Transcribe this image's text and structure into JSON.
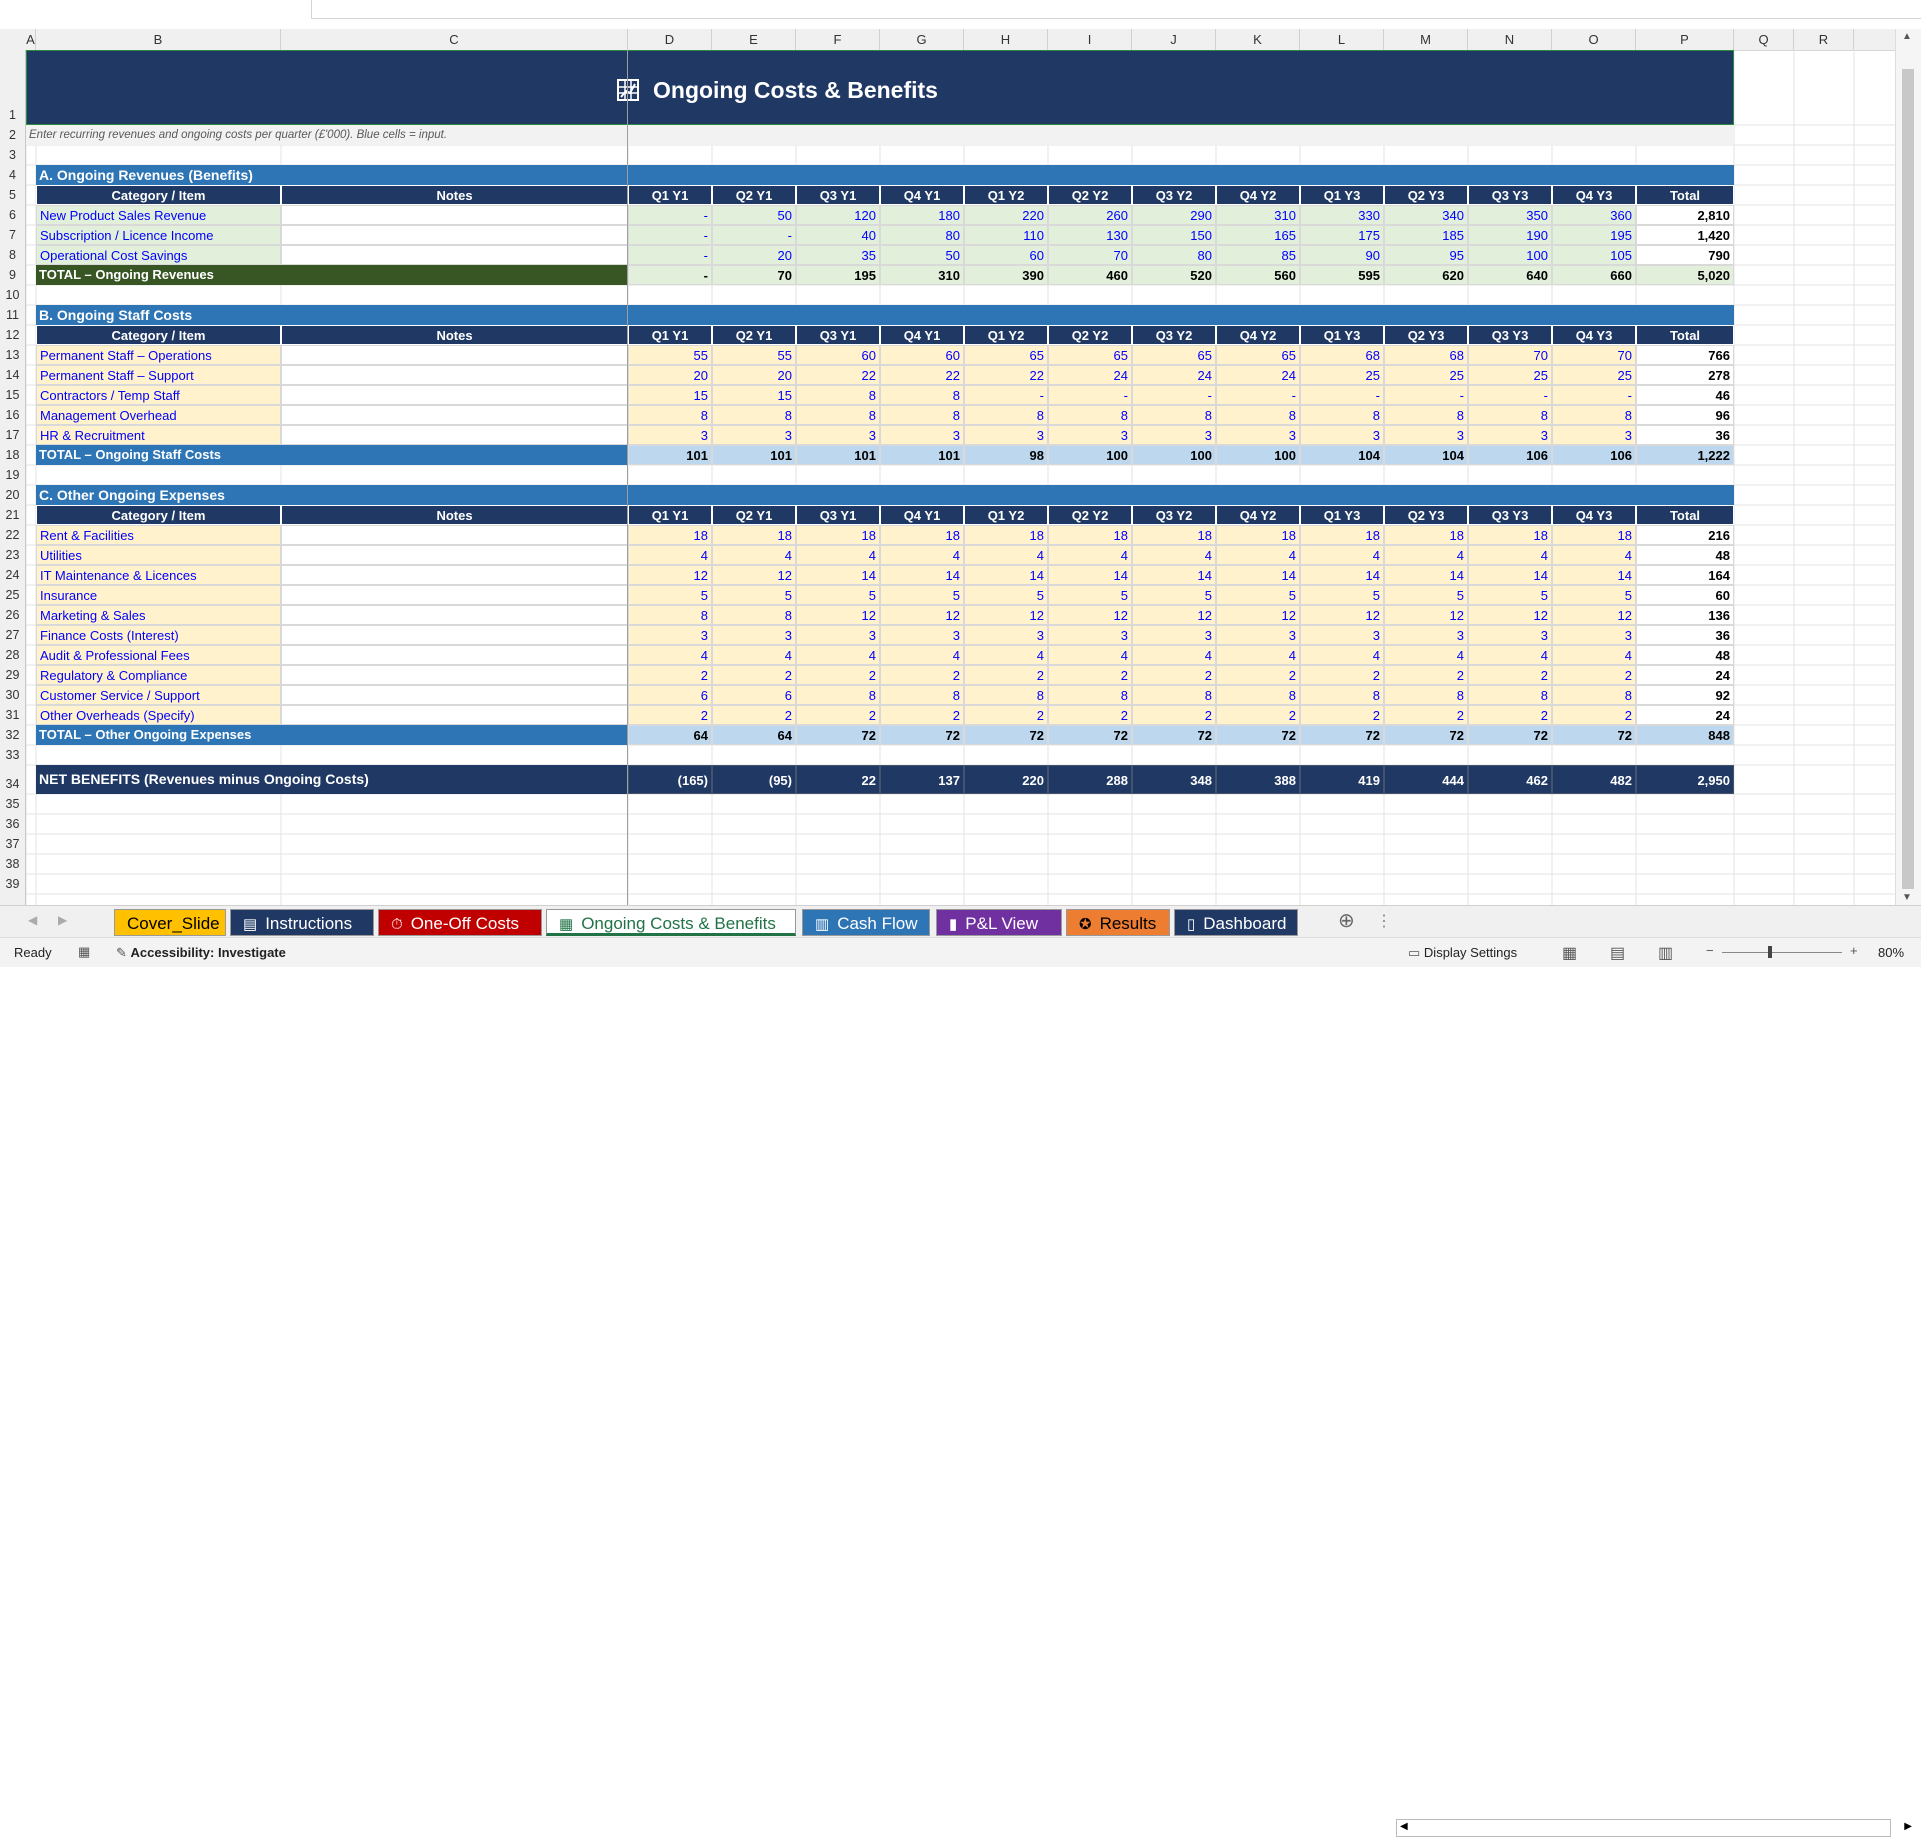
{
  "sheet_title": "Ongoing Costs & Benefits",
  "instruction": "Enter recurring revenues and ongoing costs per quarter (£'000). Blue cells = input.",
  "columns": [
    "A",
    "B",
    "C",
    "D",
    "E",
    "F",
    "G",
    "H",
    "I",
    "J",
    "K",
    "L",
    "M",
    "N",
    "O",
    "P",
    "Q",
    "R"
  ],
  "row_numbers": [
    "1",
    "2",
    "3",
    "4",
    "5",
    "6",
    "7",
    "8",
    "9",
    "10",
    "11",
    "12",
    "13",
    "14",
    "15",
    "16",
    "17",
    "18",
    "19",
    "20",
    "21",
    "22",
    "23",
    "24",
    "25",
    "26",
    "27",
    "28",
    "29",
    "30",
    "31",
    "32",
    "33",
    "34",
    "35",
    "36",
    "37",
    "38",
    "39"
  ],
  "table_header": {
    "category": "Category / Item",
    "notes": "Notes",
    "quarters": [
      "Q1 Y1",
      "Q2 Y1",
      "Q3 Y1",
      "Q4 Y1",
      "Q1 Y2",
      "Q2 Y2",
      "Q3 Y2",
      "Q4 Y2",
      "Q1 Y3",
      "Q2 Y3",
      "Q3 Y3",
      "Q4 Y3"
    ],
    "total": "Total"
  },
  "sections": [
    {
      "title": "A.  Ongoing Revenues (Benefits)",
      "kind": "revenue",
      "rows": [
        {
          "label": "New Product Sales Revenue",
          "values": [
            "-",
            "50",
            "120",
            "180",
            "220",
            "260",
            "290",
            "310",
            "330",
            "340",
            "350",
            "360"
          ],
          "total": "2,810"
        },
        {
          "label": "Subscription / Licence Income",
          "values": [
            "-",
            "-",
            "40",
            "80",
            "110",
            "130",
            "150",
            "165",
            "175",
            "185",
            "190",
            "195"
          ],
          "total": "1,420"
        },
        {
          "label": "Operational Cost Savings",
          "values": [
            "-",
            "20",
            "35",
            "50",
            "60",
            "70",
            "80",
            "85",
            "90",
            "95",
            "100",
            "105"
          ],
          "total": "790"
        }
      ],
      "total_row": {
        "label": "TOTAL – Ongoing Revenues",
        "values": [
          "-",
          "70",
          "195",
          "310",
          "390",
          "460",
          "520",
          "560",
          "595",
          "620",
          "640",
          "660"
        ],
        "total": "5,020"
      }
    },
    {
      "title": "B.  Ongoing Staff Costs",
      "kind": "cost",
      "rows": [
        {
          "label": "Permanent Staff – Operations",
          "values": [
            "55",
            "55",
            "60",
            "60",
            "65",
            "65",
            "65",
            "65",
            "68",
            "68",
            "70",
            "70"
          ],
          "total": "766"
        },
        {
          "label": "Permanent Staff – Support",
          "values": [
            "20",
            "20",
            "22",
            "22",
            "22",
            "24",
            "24",
            "24",
            "25",
            "25",
            "25",
            "25"
          ],
          "total": "278"
        },
        {
          "label": "Contractors / Temp Staff",
          "values": [
            "15",
            "15",
            "8",
            "8",
            "-",
            "-",
            "-",
            "-",
            "-",
            "-",
            "-",
            "-"
          ],
          "total": "46"
        },
        {
          "label": "Management Overhead",
          "values": [
            "8",
            "8",
            "8",
            "8",
            "8",
            "8",
            "8",
            "8",
            "8",
            "8",
            "8",
            "8"
          ],
          "total": "96"
        },
        {
          "label": "HR & Recruitment",
          "values": [
            "3",
            "3",
            "3",
            "3",
            "3",
            "3",
            "3",
            "3",
            "3",
            "3",
            "3",
            "3"
          ],
          "total": "36"
        }
      ],
      "total_row": {
        "label": "TOTAL – Ongoing Staff Costs",
        "values": [
          "101",
          "101",
          "101",
          "101",
          "98",
          "100",
          "100",
          "100",
          "104",
          "104",
          "106",
          "106"
        ],
        "total": "1,222"
      }
    },
    {
      "title": "C.  Other Ongoing Expenses",
      "kind": "cost",
      "rows": [
        {
          "label": "Rent & Facilities",
          "values": [
            "18",
            "18",
            "18",
            "18",
            "18",
            "18",
            "18",
            "18",
            "18",
            "18",
            "18",
            "18"
          ],
          "total": "216"
        },
        {
          "label": "Utilities",
          "values": [
            "4",
            "4",
            "4",
            "4",
            "4",
            "4",
            "4",
            "4",
            "4",
            "4",
            "4",
            "4"
          ],
          "total": "48"
        },
        {
          "label": "IT Maintenance & Licences",
          "values": [
            "12",
            "12",
            "14",
            "14",
            "14",
            "14",
            "14",
            "14",
            "14",
            "14",
            "14",
            "14"
          ],
          "total": "164"
        },
        {
          "label": "Insurance",
          "values": [
            "5",
            "5",
            "5",
            "5",
            "5",
            "5",
            "5",
            "5",
            "5",
            "5",
            "5",
            "5"
          ],
          "total": "60"
        },
        {
          "label": "Marketing & Sales",
          "values": [
            "8",
            "8",
            "12",
            "12",
            "12",
            "12",
            "12",
            "12",
            "12",
            "12",
            "12",
            "12"
          ],
          "total": "136"
        },
        {
          "label": "Finance Costs (Interest)",
          "values": [
            "3",
            "3",
            "3",
            "3",
            "3",
            "3",
            "3",
            "3",
            "3",
            "3",
            "3",
            "3"
          ],
          "total": "36"
        },
        {
          "label": "Audit & Professional Fees",
          "values": [
            "4",
            "4",
            "4",
            "4",
            "4",
            "4",
            "4",
            "4",
            "4",
            "4",
            "4",
            "4"
          ],
          "total": "48"
        },
        {
          "label": "Regulatory & Compliance",
          "values": [
            "2",
            "2",
            "2",
            "2",
            "2",
            "2",
            "2",
            "2",
            "2",
            "2",
            "2",
            "2"
          ],
          "total": "24"
        },
        {
          "label": "Customer Service / Support",
          "values": [
            "6",
            "6",
            "8",
            "8",
            "8",
            "8",
            "8",
            "8",
            "8",
            "8",
            "8",
            "8"
          ],
          "total": "92"
        },
        {
          "label": "Other Overheads (Specify)",
          "values": [
            "2",
            "2",
            "2",
            "2",
            "2",
            "2",
            "2",
            "2",
            "2",
            "2",
            "2",
            "2"
          ],
          "total": "24"
        }
      ],
      "total_row": {
        "label": "TOTAL – Other Ongoing Expenses",
        "values": [
          "64",
          "64",
          "72",
          "72",
          "72",
          "72",
          "72",
          "72",
          "72",
          "72",
          "72",
          "72"
        ],
        "total": "848"
      }
    }
  ],
  "net_benefits": {
    "label": "NET BENEFITS (Revenues minus Ongoing Costs)",
    "values": [
      "(165)",
      "(95)",
      "22",
      "137",
      "220",
      "288",
      "348",
      "388",
      "419",
      "444",
      "462",
      "482"
    ],
    "total": "2,950"
  },
  "tabs": [
    {
      "label": "Cover_Slide",
      "icon": "",
      "bg": "#ffc000",
      "fg": "#000000",
      "icon_name": "none"
    },
    {
      "label": "Instructions",
      "icon": "▤",
      "bg": "#1f3864",
      "fg": "#ffffff",
      "icon_name": "document-icon"
    },
    {
      "label": "One-Off Costs",
      "icon": "⏱",
      "bg": "#c00000",
      "fg": "#ffffff",
      "icon_name": "stopwatch-icon"
    },
    {
      "label": "Ongoing Costs & Benefits",
      "icon": "▦",
      "bg": "#ffffff",
      "fg": "#217346",
      "icon_name": "chart-grid-icon",
      "active": true
    },
    {
      "label": "Cash Flow",
      "icon": "▥",
      "bg": "#2e75b6",
      "fg": "#ffffff",
      "icon_name": "cash-icon"
    },
    {
      "label": "P&L View",
      "icon": "▮",
      "bg": "#7030a0",
      "fg": "#ffffff",
      "icon_name": "bar-chart-icon"
    },
    {
      "label": "Results",
      "icon": "✪",
      "bg": "#ed7d31",
      "fg": "#000000",
      "icon_name": "medal-icon"
    },
    {
      "label": "Dashboard",
      "icon": "▯",
      "bg": "#1f3864",
      "fg": "#ffffff",
      "icon_name": "dashboard-icon"
    }
  ],
  "status": {
    "ready": "Ready",
    "accessibility": "Accessibility: Investigate",
    "display_settings": "Display Settings",
    "zoom": "80%"
  },
  "colors": {
    "navy": "#1f3864",
    "section_blue": "#2e75b6",
    "revenue_input": "#e2efda",
    "cost_input": "#fff2cc",
    "revenue_total": "#375623",
    "cost_total_values": "#bdd7ee",
    "input_text": "#0000ff"
  }
}
